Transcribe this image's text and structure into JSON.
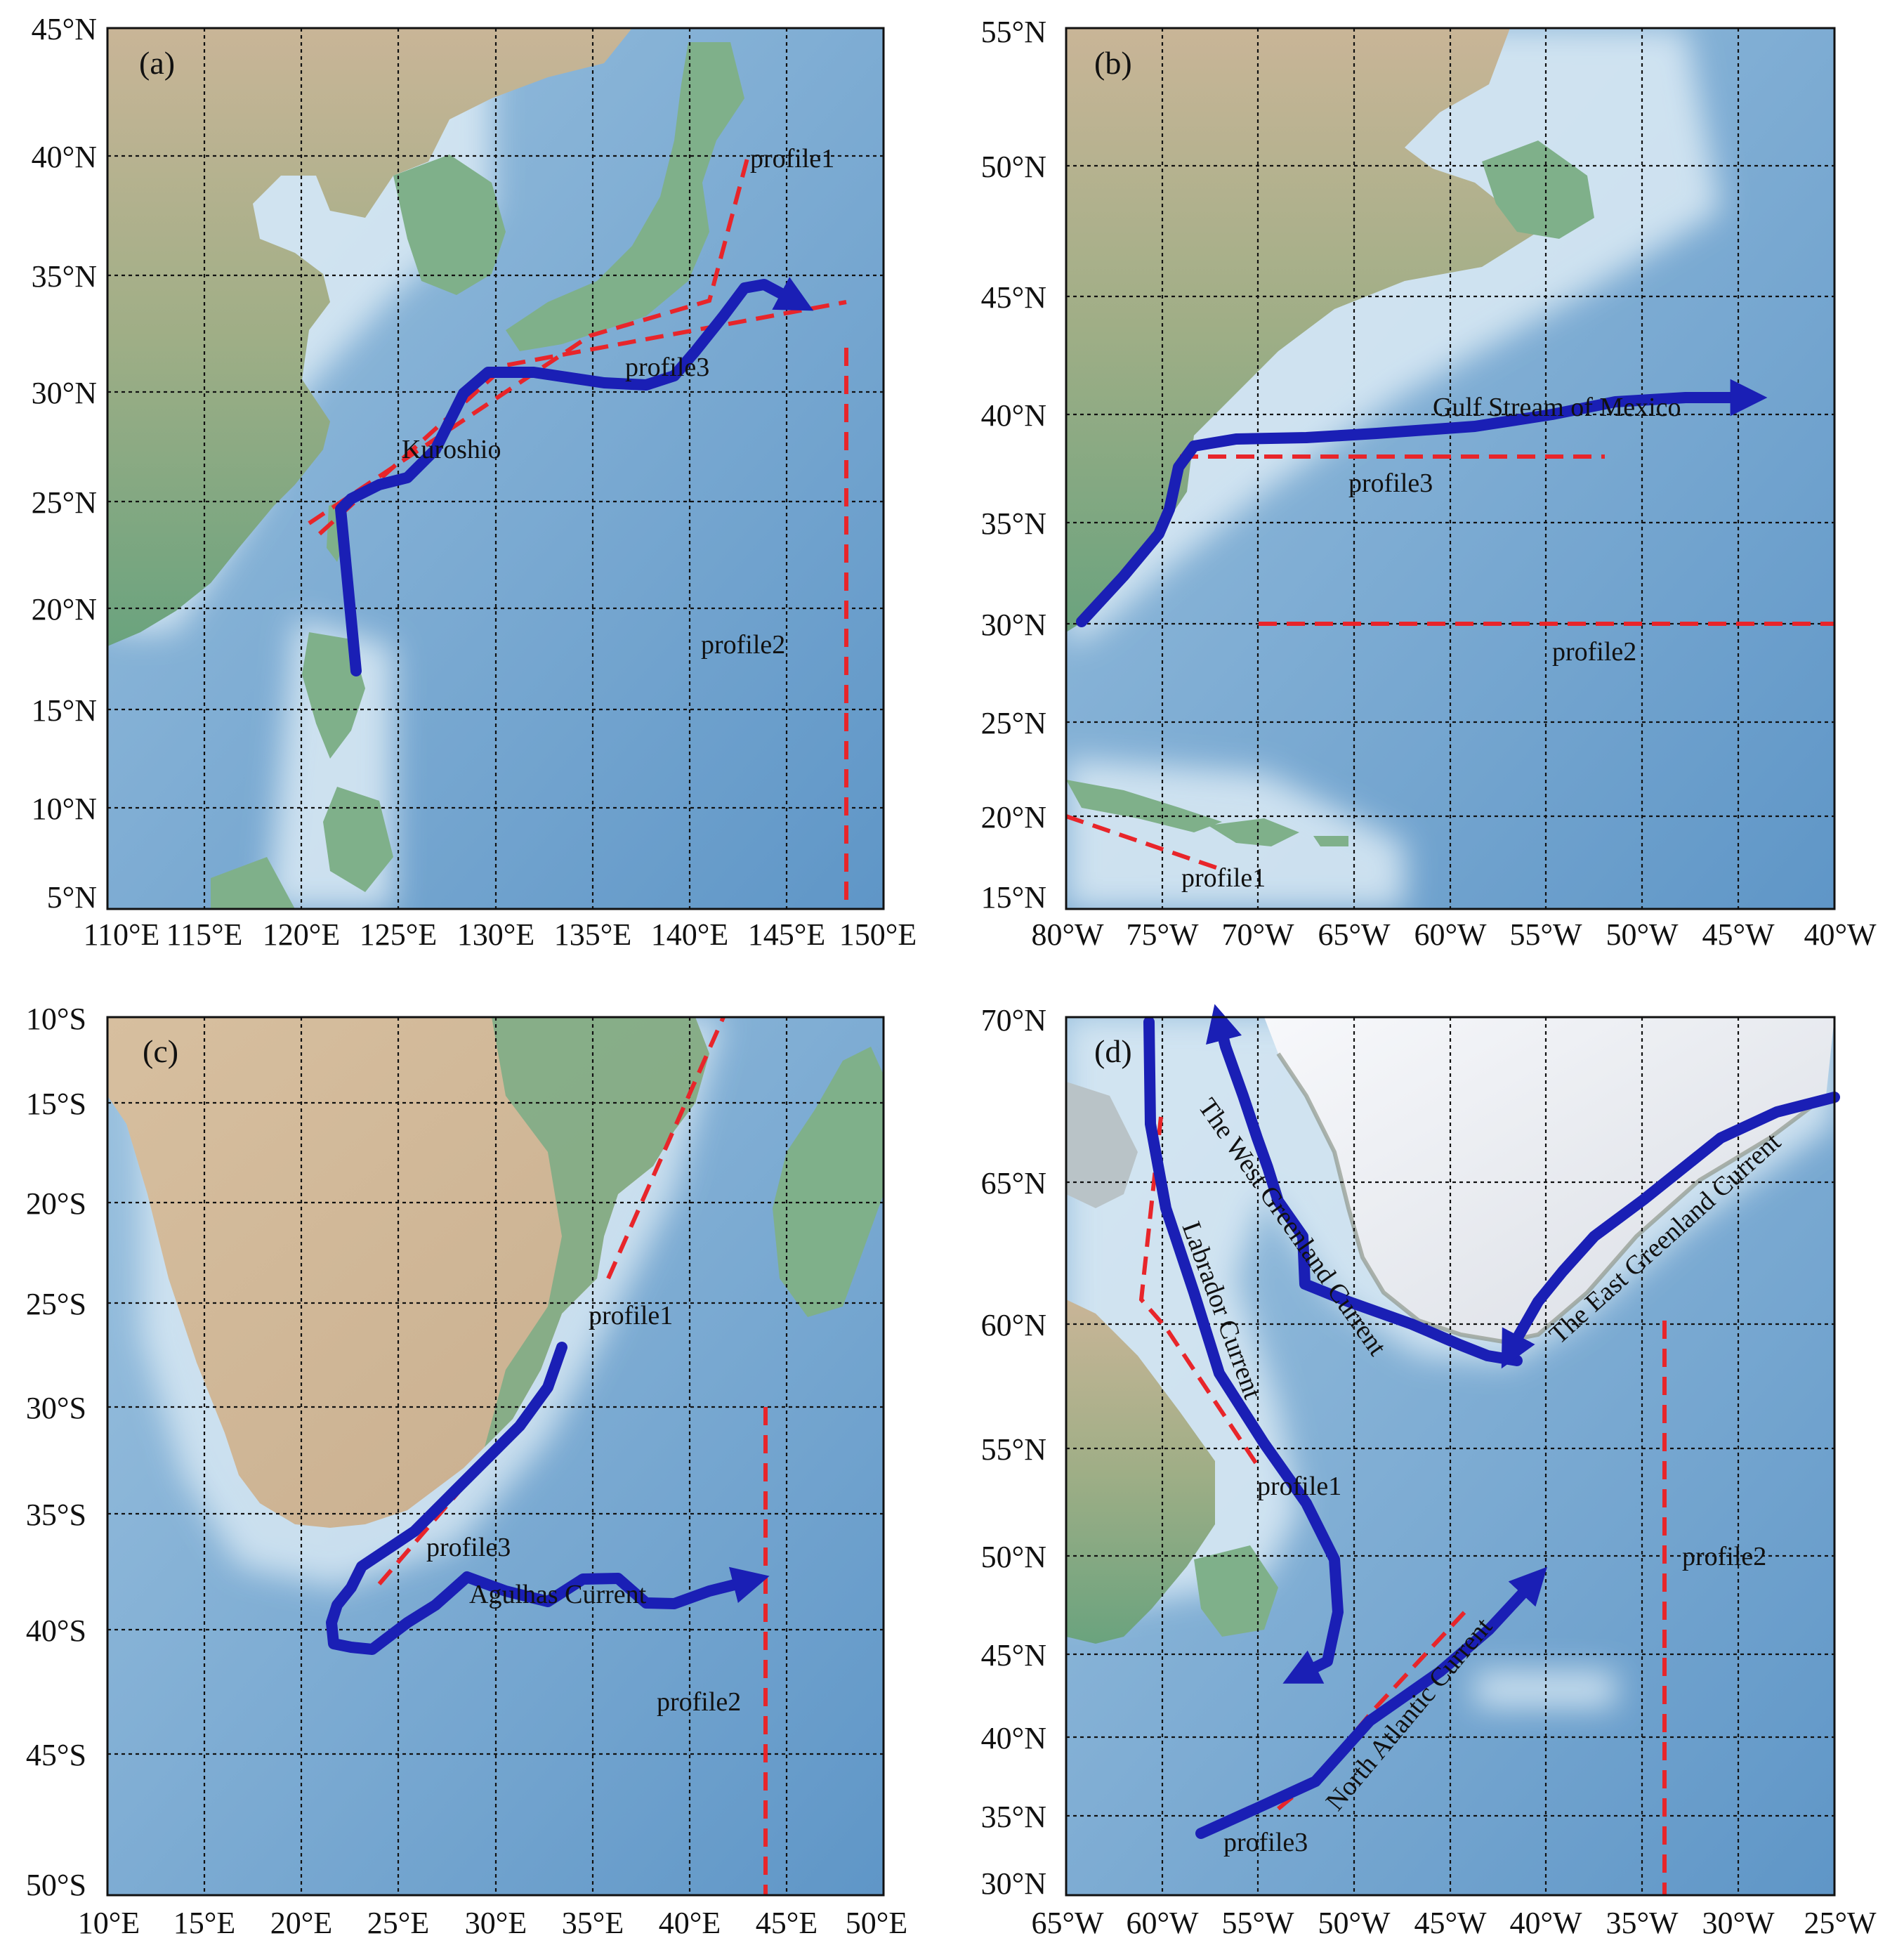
{
  "colors": {
    "ocean_deep": "#5e95c6",
    "ocean_shallow": "#cfe3f2",
    "land_low": "#6ea882",
    "land_high": "#cfb79a",
    "ice": "#f2f4f7",
    "current": "#1a1fb5",
    "profile": "#e8252a"
  },
  "panels": [
    {
      "id": "a",
      "label": "(a)",
      "lon_ticks": [
        "110°E",
        "115°E",
        "120°E",
        "125°E",
        "130°E",
        "135°E",
        "140°E",
        "145°E",
        "150°E"
      ],
      "lat_ticks": [
        "45°N",
        "40°N",
        "35°N",
        "30°N",
        "25°N",
        "20°N",
        "15°N",
        "10°N",
        "5°N"
      ],
      "lon_range": [
        110,
        150
      ],
      "lat_range": [
        5,
        45
      ],
      "labels": [
        {
          "text": "profile1",
          "lon": 145.5,
          "lat": 39.9
        },
        {
          "text": "profile3",
          "lon": 137.2,
          "lat": 31.1
        },
        {
          "text": "Kuroshio",
          "lon": 131.7,
          "lat": 27.5
        },
        {
          "text": "profile2",
          "lon": 143.0,
          "lat": 17.6
        }
      ]
    },
    {
      "id": "b",
      "label": "(b)",
      "lon_ticks": [
        "80°W",
        "75°W",
        "70°W",
        "65°W",
        "60°W",
        "55°W",
        "50°W",
        "45°W",
        "40°W"
      ],
      "lat_ticks": [
        "55°N",
        "50°N",
        "45°N",
        "40°N",
        "35°N",
        "30°N",
        "25°N",
        "20°N",
        "15°N"
      ],
      "lon_range": [
        -80,
        -40
      ],
      "lat_range": [
        15,
        55
      ],
      "labels": [
        {
          "text": "Gulf Stream of Mexico",
          "lon": -55.6,
          "lat": 39.9
        },
        {
          "text": "profile3",
          "lon": -61.3,
          "lat": 36.8
        },
        {
          "text": "profile2",
          "lon": -51.2,
          "lat": 28.6
        },
        {
          "text": "profile1",
          "lon": -69.7,
          "lat": 15.8
        }
      ]
    },
    {
      "id": "c",
      "label": "(c)",
      "lon_ticks": [
        "10°E",
        "15°E",
        "20°E",
        "25°E",
        "30°E",
        "35°E",
        "40°E",
        "45°E",
        "50°E"
      ],
      "lat_ticks": [
        "10°S",
        "15°S",
        "20°S",
        "25°S",
        "30°S",
        "35°S",
        "40°S",
        "45°S",
        "50°S"
      ],
      "lon_range": [
        10,
        50
      ],
      "lat_range": [
        -50,
        -10
      ],
      "labels": [
        {
          "text": "profile1",
          "lon": 38.2,
          "lat": -25.7
        },
        {
          "text": "profile3",
          "lon": 29.0,
          "lat": -36.3
        },
        {
          "text": "Agulhas Current",
          "lon": 35.0,
          "lat": -38.8
        },
        {
          "text": "profile2",
          "lon": 41.5,
          "lat": -43.3
        }
      ]
    },
    {
      "id": "d",
      "label": "(d)",
      "lon_ticks": [
        "65°W",
        "60°W",
        "55°W",
        "50°W",
        "45°W",
        "40°W",
        "35°W",
        "30°W",
        "25°W"
      ],
      "lat_ticks": [
        "70°N",
        "65°N",
        "60°N",
        "55°N",
        "50°N",
        "45°N",
        "40°N",
        "35°N",
        "30°N"
      ],
      "lon_range": [
        -65,
        -25
      ],
      "lat_range": [
        30,
        70
      ],
      "labels": [
        {
          "text": "The West Greenland Current",
          "lon": -52.9,
          "lat": 62.3,
          "rotate": 55
        },
        {
          "text": "Labrador Current",
          "lon": -56.5,
          "lat": 59.3,
          "rotate": 70
        },
        {
          "text": "The East Greenland Current",
          "lon": -34.6,
          "lat": 63.3,
          "rotate": -42
        },
        {
          "text": "profile1",
          "lon": -51.7,
          "lat": 53.0
        },
        {
          "text": "profile2",
          "lon": -31.1,
          "lat": 49.7
        },
        {
          "text": "North Atlantic Current",
          "lon": -46.4,
          "lat": 41.0,
          "rotate": -50
        },
        {
          "text": "profile3",
          "lon": -54.2,
          "lat": 33.8
        }
      ]
    }
  ]
}
